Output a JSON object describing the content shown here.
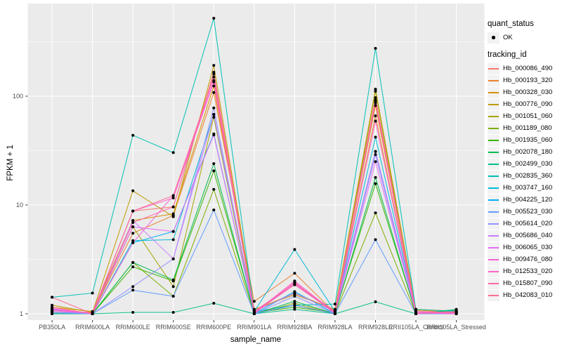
{
  "axes": {
    "x_title": "sample_name",
    "y_title": "FPKM + 1",
    "y_tick_labels": [
      "1",
      "10",
      "100"
    ],
    "y_tick_values": [
      1,
      10,
      100
    ],
    "tick_label_color": "#4d4d4d"
  },
  "legend": {
    "quant_status": {
      "title": "quant_status",
      "items": [
        {
          "label": "OK",
          "marker": "black-point"
        }
      ]
    },
    "tracking_id": {
      "title": "tracking_id"
    }
  },
  "style": {
    "panel_bg": "#ebebeb",
    "grid_color": "#ffffff",
    "point_color": "#000000",
    "legend_key_bg": "#f2f2f2",
    "tick_mark_color": "#333333"
  },
  "chart_data": {
    "type": "line",
    "title": "",
    "xlabel": "sample_name",
    "ylabel": "FPKM + 1",
    "yscale": "log10",
    "ylim": [
      0.9,
      560
    ],
    "grid": true,
    "legend_position": "right",
    "categories": [
      "PB350LA",
      "RRIM600LA",
      "RRIM600LE",
      "RRIM600SE",
      "RRIM600PE",
      "RRIM901LA",
      "RRIM928BA",
      "RRIM928LA",
      "RRIM928LE",
      "RRII105LA_Control",
      "RRII105LA_Stressed"
    ],
    "series": [
      {
        "name": "Hb_000086_490",
        "color": "#F8766D",
        "values": [
          1.12,
          1.0,
          8.8,
          9.6,
          166,
          1.05,
          1.9,
          1.05,
          97,
          1.05,
          1.02
        ]
      },
      {
        "name": "Hb_000193_320",
        "color": "#EA8331",
        "values": [
          1.08,
          1.02,
          5.5,
          8.0,
          108,
          1.3,
          2.36,
          1.02,
          66,
          1.02,
          1.05
        ]
      },
      {
        "name": "Hb_000328_030",
        "color": "#D89000",
        "values": [
          1.15,
          1.05,
          7.2,
          8.3,
          124,
          1.08,
          1.55,
          1.08,
          82,
          1.08,
          1.03
        ]
      },
      {
        "name": "Hb_000776_090",
        "color": "#C09B00",
        "values": [
          1.2,
          1.03,
          13.5,
          7.8,
          192,
          1.1,
          1.5,
          1.1,
          116,
          1.1,
          1.06
        ]
      },
      {
        "name": "Hb_001051_060",
        "color": "#A3A500",
        "values": [
          1.1,
          1.0,
          6.3,
          1.78,
          64,
          1.0,
          1.25,
          1.0,
          111,
          1.0,
          1.0
        ]
      },
      {
        "name": "Hb_001189_080",
        "color": "#7CAE00",
        "values": [
          1.05,
          1.0,
          2.96,
          1.45,
          13.9,
          1.0,
          1.2,
          1.0,
          8.45,
          1.0,
          1.02
        ]
      },
      {
        "name": "Hb_001935_060",
        "color": "#39B600",
        "values": [
          1.02,
          1.0,
          2.7,
          2.0,
          20.6,
          1.02,
          1.15,
          1.02,
          15.7,
          1.02,
          1.0
        ]
      },
      {
        "name": "Hb_002078_180",
        "color": "#00BB4E",
        "values": [
          1.0,
          1.0,
          2.96,
          2.05,
          24,
          1.0,
          1.3,
          1.0,
          17.9,
          1.0,
          1.08
        ]
      },
      {
        "name": "Hb_002499_030",
        "color": "#00C087",
        "values": [
          1.0,
          1.0,
          1.03,
          1.03,
          1.25,
          1.0,
          1.1,
          1.0,
          1.29,
          1.0,
          1.1
        ]
      },
      {
        "name": "Hb_002835_360",
        "color": "#00C0B5",
        "values": [
          1.42,
          1.55,
          43.7,
          30.3,
          520,
          1.05,
          1.2,
          1.23,
          275,
          1.1,
          1.05
        ]
      },
      {
        "name": "Hb_003747_160",
        "color": "#00BCD8",
        "values": [
          1.05,
          1.0,
          4.7,
          4.8,
          68,
          1.05,
          3.9,
          1.05,
          42,
          1.05,
          1.0
        ]
      },
      {
        "name": "Hb_004225_120",
        "color": "#00B0F6",
        "values": [
          1.1,
          1.0,
          4.5,
          5.7,
          45,
          1.0,
          1.6,
          1.0,
          31,
          1.0,
          1.05
        ]
      },
      {
        "name": "Hb_005523_030",
        "color": "#619CFF",
        "values": [
          1.02,
          1.0,
          1.65,
          1.45,
          9.0,
          1.0,
          1.2,
          1.0,
          4.8,
          1.0,
          1.0
        ]
      },
      {
        "name": "Hb_005614_020",
        "color": "#9590FF",
        "values": [
          1.05,
          1.0,
          1.78,
          3.2,
          78,
          1.0,
          1.45,
          1.0,
          29,
          1.0,
          1.02
        ]
      },
      {
        "name": "Hb_005686_040",
        "color": "#C77CFF",
        "values": [
          1.1,
          1.0,
          7.2,
          3.2,
          68,
          1.05,
          1.55,
          1.05,
          31,
          1.05,
          1.0
        ]
      },
      {
        "name": "Hb_006065_030",
        "color": "#E76BF3",
        "values": [
          1.05,
          1.02,
          6.3,
          5.7,
          44,
          1.02,
          1.85,
          1.02,
          25,
          1.02,
          1.04
        ]
      },
      {
        "name": "Hb_009476_080",
        "color": "#FA62DB",
        "values": [
          1.12,
          1.0,
          4.5,
          12.2,
          139,
          1.05,
          1.9,
          1.05,
          92,
          1.05,
          1.03
        ]
      },
      {
        "name": "Hb_012533_020",
        "color": "#FF61CC",
        "values": [
          1.08,
          1.02,
          8.8,
          11.6,
          135,
          1.02,
          2.0,
          1.02,
          59,
          1.02,
          1.0
        ]
      },
      {
        "name": "Hb_015807_090",
        "color": "#FF67A4",
        "values": [
          1.15,
          1.0,
          6.9,
          9.6,
          160,
          1.0,
          1.95,
          1.0,
          87,
          1.0,
          1.05
        ]
      },
      {
        "name": "Hb_042083_010",
        "color": "#FF6C91",
        "values": [
          1.42,
          1.0,
          8.8,
          12.2,
          150,
          1.05,
          1.85,
          1.05,
          90,
          1.05,
          1.02
        ]
      }
    ]
  }
}
